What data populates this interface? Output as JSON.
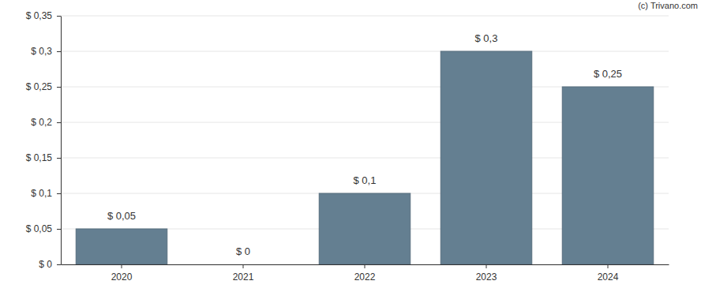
{
  "chart_data": {
    "type": "bar",
    "categories": [
      "2020",
      "2021",
      "2022",
      "2023",
      "2024"
    ],
    "values": [
      0.05,
      0,
      0.1,
      0.3,
      0.25
    ],
    "value_labels": [
      "$ 0,05",
      "$ 0",
      "$ 0,1",
      "$ 0,3",
      "$ 0,25"
    ],
    "data_labels": true,
    "color": "#647f91",
    "ylim": [
      0,
      0.35
    ],
    "yticks": [
      {
        "value": 0,
        "label": "$ 0"
      },
      {
        "value": 0.05,
        "label": "$ 0,05"
      },
      {
        "value": 0.1,
        "label": "$ 0,1"
      },
      {
        "value": 0.15,
        "label": "$ 0,15"
      },
      {
        "value": 0.2,
        "label": "$ 0,2"
      },
      {
        "value": 0.25,
        "label": "$ 0,25"
      },
      {
        "value": 0.3,
        "label": "$ 0,3"
      },
      {
        "value": 0.35,
        "label": "$ 0,35"
      }
    ],
    "grid": true,
    "annotations": [
      "(c) Trivano.com"
    ]
  }
}
